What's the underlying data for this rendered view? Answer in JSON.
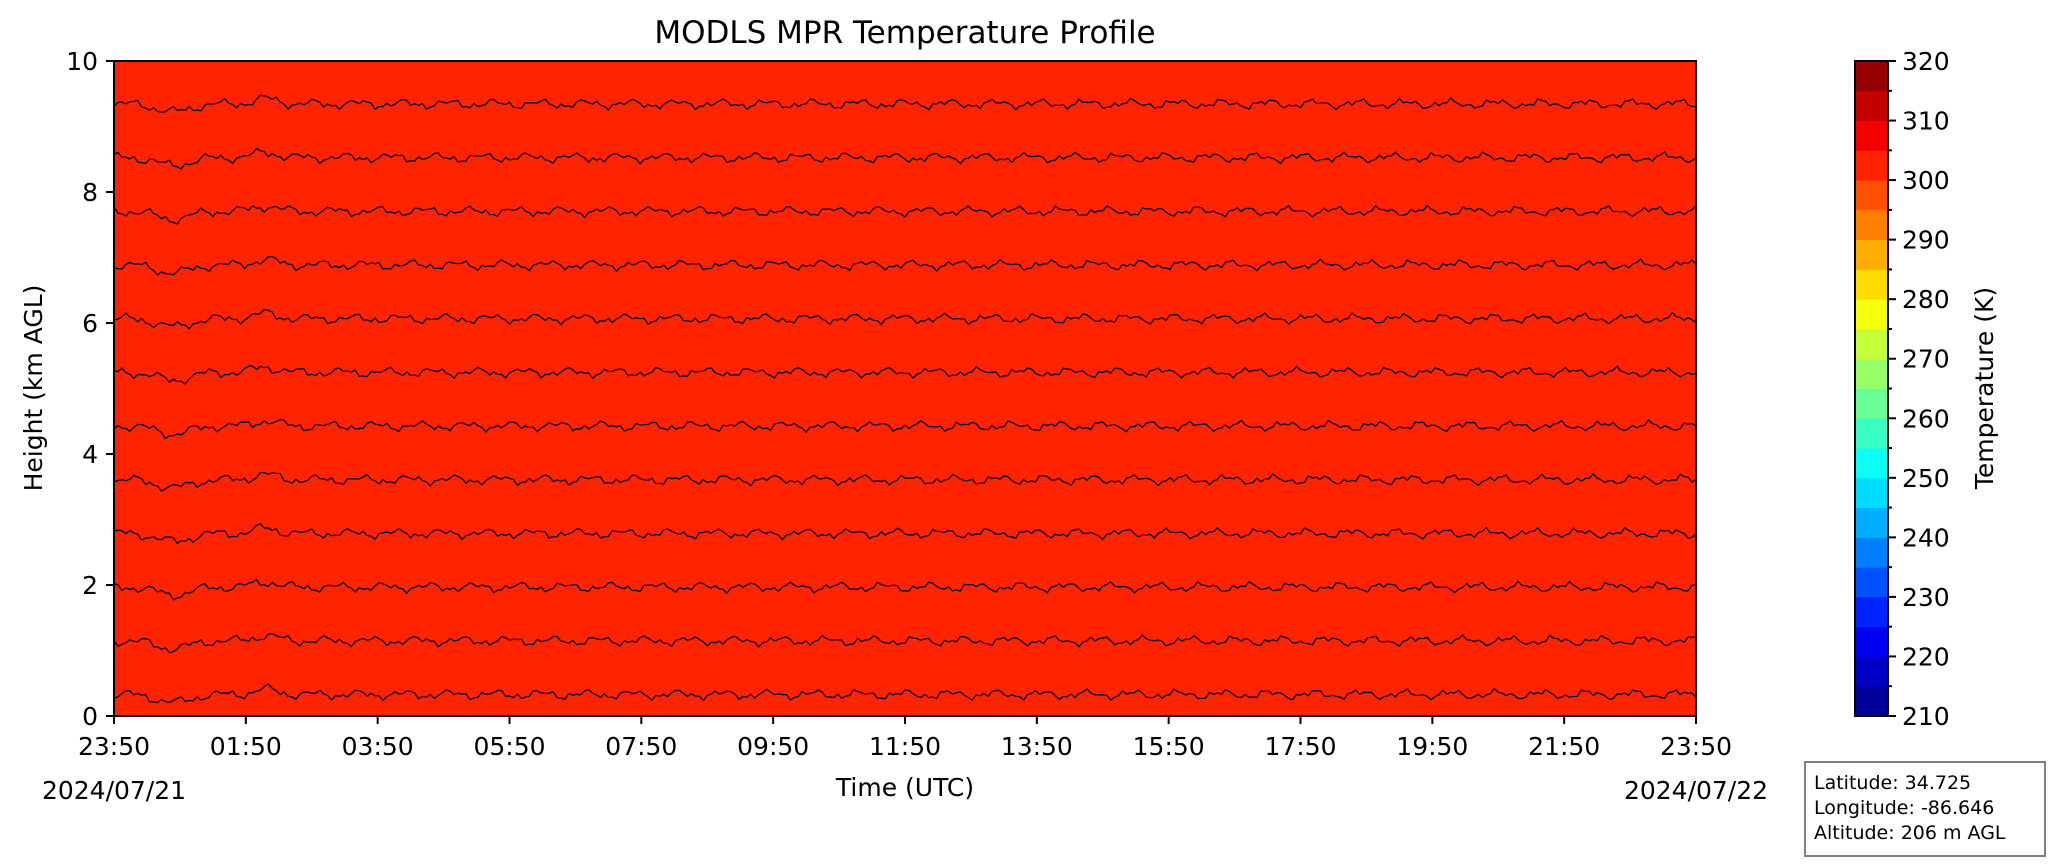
{
  "chart_data": {
    "type": "heatmap",
    "title": "MODLS MPR Temperature Profile",
    "xlabel": "Time (UTC)",
    "ylabel": "Height (km AGL)",
    "x_tick_labels": [
      "23:50",
      "01:50",
      "03:50",
      "05:50",
      "07:50",
      "09:50",
      "11:50",
      "13:50",
      "15:50",
      "17:50",
      "19:50",
      "21:50",
      "23:50"
    ],
    "x_range_hours": [
      0,
      24
    ],
    "start_date_label": "2024/07/21",
    "end_date_label": "2024/07/22",
    "ylim": [
      0,
      10
    ],
    "y_ticks": [
      0,
      2,
      4,
      6,
      8,
      10
    ],
    "colorbar": {
      "label": "Temperature (K)",
      "range": [
        210,
        320
      ],
      "ticks": [
        210,
        220,
        230,
        240,
        250,
        260,
        270,
        280,
        290,
        300,
        310,
        320
      ],
      "level_step": 5,
      "colormap": "jet"
    },
    "contour_levels_K": [
      300,
      295,
      290,
      285,
      280,
      275,
      270,
      265,
      260,
      255,
      250,
      245,
      240
    ],
    "surface_temperature_K": 302,
    "lapse_rate_K_per_km": 6.1,
    "grid": false
  },
  "info": {
    "latitude": "Latitude: 34.725",
    "longitude": "Longitude: -86.646",
    "altitude": "Altitude: 206 m AGL"
  }
}
